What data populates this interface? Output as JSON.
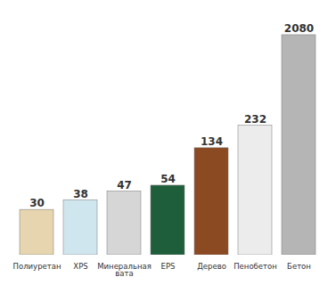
{
  "chart_data": {
    "type": "bar",
    "categories": [
      "Полиуретан",
      "XPS",
      "Минеральная вата",
      "EPS",
      "Дерево",
      "Пенобетон",
      "Бетон"
    ],
    "values": [
      30,
      38,
      47,
      54,
      134,
      232,
      2080
    ],
    "colors": [
      "#e6d5ae",
      "#cfe6ef",
      "#d6d6d6",
      "#1f5e3a",
      "#8b4a22",
      "#ececec",
      "#b5b5b5"
    ],
    "log": "y",
    "ylim": [
      10,
      3000
    ],
    "data_labels": true,
    "tick_labels": "x",
    "grid": false
  }
}
